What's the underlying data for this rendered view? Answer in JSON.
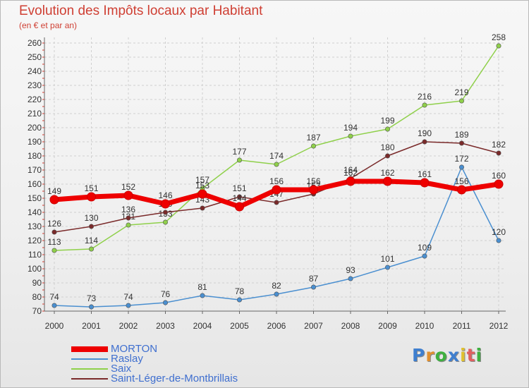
{
  "chart_data": {
    "type": "line",
    "title": "Evolution des Impôts locaux par Habitant",
    "subtitle": "(en € et par an)",
    "x": [
      "2000",
      "2001",
      "2002",
      "2003",
      "2004",
      "2005",
      "2006",
      "2007",
      "2008",
      "2009",
      "2010",
      "2011",
      "2012"
    ],
    "ylim": [
      70,
      260
    ],
    "yticks": [
      70,
      80,
      90,
      100,
      110,
      120,
      130,
      140,
      150,
      160,
      170,
      180,
      190,
      200,
      210,
      220,
      230,
      240,
      250,
      260
    ],
    "grid": true,
    "legend_position": "bottom-left",
    "series": [
      {
        "name": "Raslay",
        "color": "#4a8fd0",
        "values": [
          74,
          73,
          74,
          76,
          81,
          78,
          82,
          87,
          93,
          101,
          109,
          172,
          120
        ]
      },
      {
        "name": "Saix",
        "color": "#8fd04a",
        "values": [
          113,
          114,
          131,
          133,
          157,
          177,
          174,
          187,
          194,
          199,
          216,
          219,
          258
        ]
      },
      {
        "name": "Saint-Léger-de-Montbrillais",
        "color": "#7a2a2a",
        "values": [
          126,
          130,
          136,
          140,
          143,
          151,
          147,
          153,
          164,
          180,
          190,
          189,
          182
        ]
      },
      {
        "name": "MORTON",
        "color": "#ee0000",
        "values": [
          149,
          151,
          152,
          146,
          153,
          144,
          156,
          156,
          162,
          162,
          161,
          156,
          160
        ]
      }
    ],
    "legend_order": [
      "MORTON",
      "Raslay",
      "Saix",
      "Saint-Léger-de-Montbrillais"
    ]
  },
  "legend": [
    {
      "label": "MORTON",
      "color": "#ee0000"
    },
    {
      "label": "Raslay",
      "color": "#4a8fd0"
    },
    {
      "label": "Saix",
      "color": "#8fd04a"
    },
    {
      "label": "Saint-Léger-de-Montbrillais",
      "color": "#7a2a2a"
    }
  ],
  "brand": {
    "letters": [
      "P",
      "r",
      "o",
      "x",
      "i",
      "t",
      "i"
    ],
    "colors": [
      "#3f7fcf",
      "#e09030",
      "#3fb040",
      "#3f7fcf",
      "#e0c030",
      "#e06060",
      "#3fb040"
    ]
  }
}
